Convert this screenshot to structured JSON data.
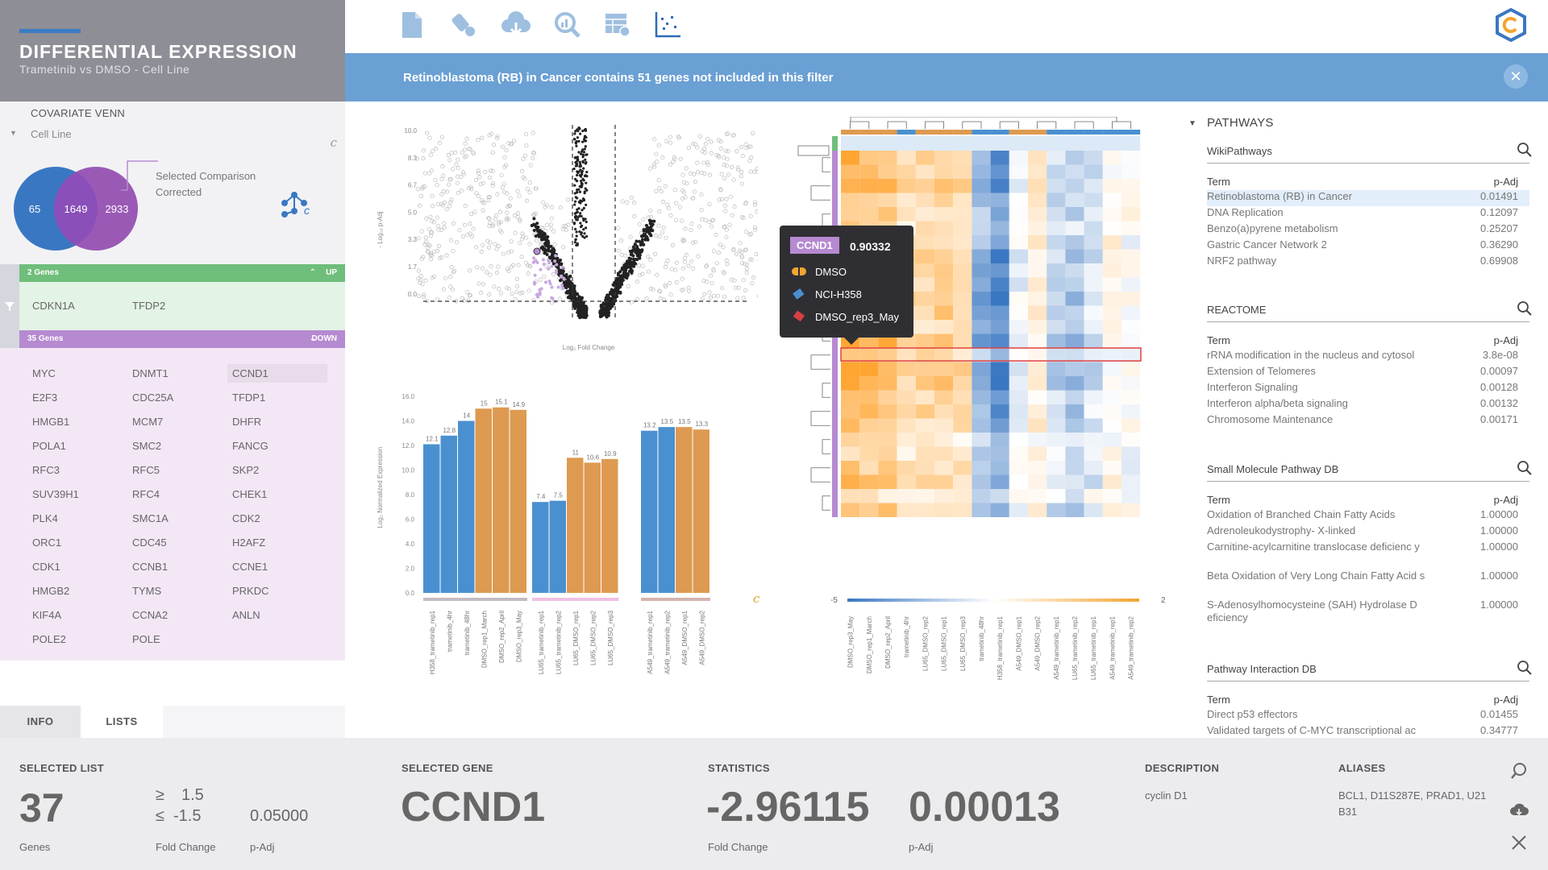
{
  "app": {
    "title": "DIFFERENTIAL EXPRESSION",
    "subtitle": "Trametinib vs DMSO - Cell Line"
  },
  "venn": {
    "title": "COVARIATE VENN",
    "covariate": "Cell Line",
    "c_icon": "c",
    "left": "65",
    "overlap": "1649",
    "right": "2933",
    "label1": "Selected Comparison",
    "label2": "Corrected",
    "color_left": "#3a77c2",
    "color_right": "#9b59b6"
  },
  "up": {
    "count_label": "2 Genes",
    "direction": "UP",
    "genes": [
      "CDKN1A",
      "TFDP2"
    ]
  },
  "down": {
    "count_label": "35 Genes",
    "direction": "DOWN",
    "genes": [
      "MYC",
      "DNMT1",
      "CCND1",
      "E2F3",
      "CDC25A",
      "TFDP1",
      "HMGB1",
      "MCM7",
      "DHFR",
      "POLA1",
      "SMC2",
      "FANCG",
      "RFC3",
      "RFC5",
      "SKP2",
      "SUV39H1",
      "RFC4",
      "CHEK1",
      "PLK4",
      "SMC1A",
      "CDK2",
      "ORC1",
      "CDC45",
      "H2AFZ",
      "CDK1",
      "CCNB1",
      "CCNE1",
      "HMGB2",
      "TYMS",
      "PRKDC",
      "KIF4A",
      "CCNA2",
      "ANLN",
      "POLE2",
      "POLE"
    ]
  },
  "tabs": {
    "info": "INFO",
    "lists": "LISTS"
  },
  "toolbar": {
    "icons": [
      "file-icon",
      "brush-icon",
      "cloud-download-icon",
      "search-chart-icon",
      "table-settings-icon",
      "scatter-axis-icon"
    ],
    "logo": "app-logo-icon"
  },
  "banner": {
    "text": "Retinoblastoma (RB) in Cancer contains 51 genes not included in this filter"
  },
  "volcano": {
    "ylabel": "- Log₁₀ p-Adj",
    "xlabel": "Log₂ Fold Change",
    "yticks": [
      "10.0",
      "8.3",
      "6.7",
      "5.0",
      "3.3",
      "1.7",
      "0.0"
    ]
  },
  "chart_data": {
    "type": "bar",
    "ylabel": "Log₂ Normalized Expression",
    "ylim": [
      0,
      16
    ],
    "yticks": [
      "16.0",
      "14.0",
      "12.0",
      "10.0",
      "8.0",
      "6.0",
      "4.0",
      "2.0",
      "0.0"
    ],
    "c_icon": "c",
    "groups": [
      {
        "categories": [
          "H358_trametinib_rep1",
          "trametinib_4hr",
          "trametinib_48hr",
          "DMSO_rep1_March",
          "DMSO_rep2_April",
          "DMSO_rep3_May"
        ],
        "values": [
          12.1,
          12.8,
          14.0,
          15.0,
          15.1,
          14.9
        ],
        "colors": [
          "#4a90d0",
          "#4a90d0",
          "#4a90d0",
          "#dd9a50",
          "#dd9a50",
          "#dd9a50"
        ]
      },
      {
        "categories": [
          "LU65_trametinib_rep1",
          "LU65_trametinib_rep2",
          "LU65_DMSO_rep1",
          "LU65_DMSO_rep2",
          "LU65_DMSO_rep3"
        ],
        "values": [
          7.4,
          7.5,
          11.0,
          10.6,
          10.9
        ],
        "colors": [
          "#4a90d0",
          "#4a90d0",
          "#dd9a50",
          "#dd9a50",
          "#dd9a50"
        ]
      },
      {
        "categories": [
          "A549_trametinib_rep1",
          "A549_trametinib_rep2",
          "A549_DMSO_rep1",
          "A549_DMSO_rep2"
        ],
        "values": [
          13.2,
          13.5,
          13.5,
          13.3
        ],
        "colors": [
          "#4a90d0",
          "#4a90d0",
          "#dd9a50",
          "#dd9a50"
        ]
      }
    ]
  },
  "heatmap": {
    "min_label": "-5",
    "max_label": "2",
    "columns": [
      "DMSO_rep3_May",
      "DMSO_rep1_March",
      "DMSO_rep2_April",
      "trametinib_4hr",
      "LU65_DMSO_rep2",
      "LU65_DMSO_rep1",
      "LU65_DMSO_rep3",
      "trametinib_48hr",
      "H358_trametinib_rep1",
      "A549_DMSO_rep1",
      "A549_DMSO_rep2",
      "A549_trametinib_rep1",
      "LU65_trametinib_rep2",
      "LU65_trametinib_rep1",
      "A549_trametinib_rep1",
      "A549_trametinib_rep2"
    ]
  },
  "tooltip": {
    "gene": "CCND1",
    "value": "0.90332",
    "rows": [
      "DMSO",
      "NCI-H358",
      "DMSO_rep3_May"
    ]
  },
  "pathways": {
    "title": "PATHWAYS",
    "col_term": "Term",
    "col_padj": "p-Adj",
    "sections": [
      {
        "title": "WikiPathways",
        "rows": [
          {
            "term": "Retinoblastoma (RB) in Cancer",
            "p": "0.01491"
          },
          {
            "term": "DNA Replication",
            "p": "0.12097"
          },
          {
            "term": "Benzo(a)pyrene metabolism",
            "p": "0.25207"
          },
          {
            "term": "Gastric Cancer Network 2",
            "p": "0.36290"
          },
          {
            "term": "NRF2 pathway",
            "p": "0.69908"
          }
        ]
      },
      {
        "title": "REACTOME",
        "rows": [
          {
            "term": "rRNA modification in the nucleus and cytosol",
            "p": "3.8e-08"
          },
          {
            "term": "Extension of Telomeres",
            "p": "0.00097"
          },
          {
            "term": "Interferon Signaling",
            "p": "0.00128"
          },
          {
            "term": "Interferon alpha/beta signaling",
            "p": "0.00132"
          },
          {
            "term": "Chromosome Maintenance",
            "p": "0.00171"
          }
        ]
      },
      {
        "title": "Small Molecule Pathway DB",
        "rows": [
          {
            "term": "Oxidation of Branched Chain Fatty Acids",
            "p": "1.00000"
          },
          {
            "term": "Adrenoleukodystrophy- X-linked",
            "p": "1.00000"
          },
          {
            "term": "Carnitine-acylcarnitine translocase deficienc y",
            "p": "1.00000"
          },
          {
            "term": "Beta Oxidation of Very Long Chain Fatty Acid s",
            "p": "1.00000"
          },
          {
            "term": "S-Adenosylhomocysteine (SAH) Hydrolase D eficiency",
            "p": "1.00000"
          }
        ]
      },
      {
        "title": "Pathway Interaction DB",
        "rows": [
          {
            "term": "Direct p53 effectors",
            "p": "0.01455"
          },
          {
            "term": "Validated targets of C-MYC transcriptional ac",
            "p": "0.34777"
          }
        ]
      }
    ]
  },
  "footer": {
    "selected_list_label": "SELECTED LIST",
    "count": "37",
    "count_unit": "Genes",
    "ge": "≥",
    "le": "≤",
    "fc_up": "1.5",
    "fc_down": "-1.5",
    "fc_label": "Fold Change",
    "padj": "0.05000",
    "padj_label": "p-Adj",
    "selected_gene_label": "SELECTED GENE",
    "gene": "CCND1",
    "statistics_label": "STATISTICS",
    "stat_fc": "-2.96115",
    "stat_fc_label": "Fold Change",
    "stat_p": "0.00013",
    "stat_p_label": "p-Adj",
    "description_label": "DESCRIPTION",
    "description": "cyclin D1",
    "aliases_label": "ALIASES",
    "aliases_line1": "BCL1, D11S287E, PRAD1, U21",
    "aliases_line2": "B31"
  }
}
